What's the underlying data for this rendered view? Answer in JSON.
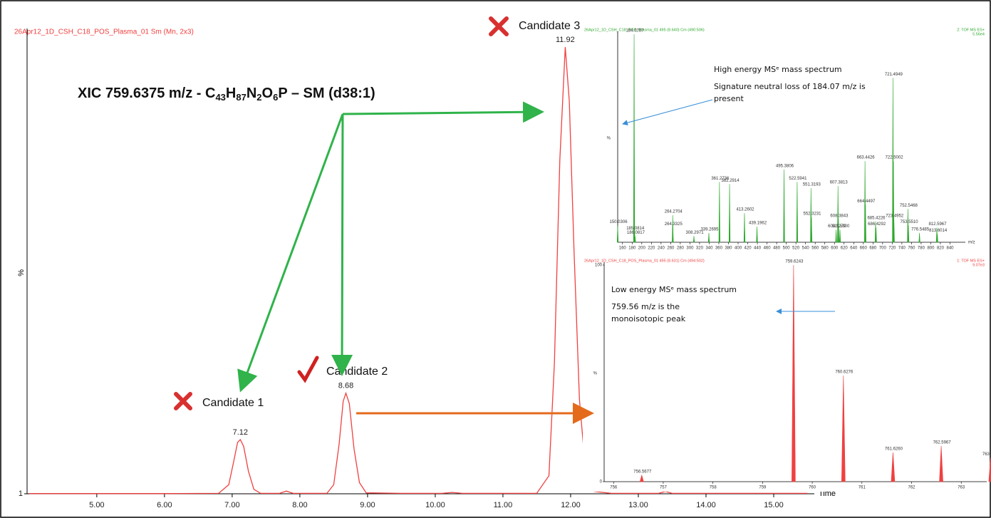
{
  "chart_data": [
    {
      "type": "line",
      "title": "26Apr12_1D_CSH_C18_POS_Plasma_01 Sm (Mn, 2x3)",
      "color": "#f04040",
      "y_label": "%",
      "x_label": "Time",
      "xlim": [
        3.97,
        15.6
      ],
      "ylim": [
        1,
        100
      ],
      "xticks": [
        {
          "value": 5,
          "label": "5.00"
        },
        {
          "value": 6,
          "label": "6.00"
        },
        {
          "value": 7,
          "label": "7.00"
        },
        {
          "value": 8,
          "label": "8.00"
        },
        {
          "value": 9,
          "label": "9.00"
        },
        {
          "value": 10,
          "label": "10.00"
        },
        {
          "value": 11,
          "label": "11.00"
        },
        {
          "value": 12,
          "label": "12.00"
        },
        {
          "value": 13,
          "label": "13.00"
        },
        {
          "value": 14,
          "label": "14.00"
        },
        {
          "value": 15,
          "label": "15.00"
        }
      ],
      "yticks": [
        1
      ],
      "x": [
        4.0,
        5.0,
        6.0,
        6.8,
        6.95,
        7.02,
        7.08,
        7.12,
        7.17,
        7.24,
        7.32,
        7.42,
        7.7,
        7.8,
        7.9,
        8.4,
        8.5,
        8.58,
        8.64,
        8.68,
        8.73,
        8.8,
        8.88,
        8.98,
        9.5,
        10.1,
        10.25,
        10.4,
        11.5,
        11.68,
        11.76,
        11.84,
        11.92,
        11.98,
        12.05,
        12.13,
        12.22,
        12.35,
        12.6,
        13.3,
        13.4,
        13.5,
        15.5
      ],
      "values": [
        1.05,
        1.05,
        1.05,
        1.1,
        3,
        8,
        12.4,
        13,
        11.5,
        6,
        2,
        1.1,
        1.1,
        1.6,
        1.1,
        1.1,
        3,
        12,
        21.5,
        23.3,
        21,
        11,
        3.5,
        1.2,
        1.1,
        1.1,
        1.3,
        1.1,
        1.1,
        5,
        30,
        75,
        100,
        88,
        55,
        22,
        6,
        1.5,
        1.1,
        1.1,
        1.5,
        1.1,
        1.1
      ],
      "peak_labels": [
        7.12,
        8.68,
        11.92
      ],
      "candidates": [
        "Candidate 1",
        "Candidate 2",
        "Candidate 3"
      ],
      "xic_label": [
        "XIC 759.6375 m/z - C",
        "43",
        "H",
        "87",
        "N",
        "2",
        "O",
        "6",
        "P – SM (d38:1)"
      ]
    },
    {
      "type": "spectrum",
      "title": "26Apr12_1D_CSH_C18_POS_Plasma_01 495 (8.640) Cm (490:506)",
      "color": "#2ea82e",
      "header": [
        "2: TOF MS ES+",
        "5.56e4"
      ],
      "y_label": "%",
      "x_label": "m/z",
      "xlim": [
        150,
        857
      ],
      "ylim": [
        0,
        100
      ],
      "xticks": [
        160,
        180,
        200,
        220,
        240,
        260,
        280,
        300,
        320,
        340,
        360,
        380,
        400,
        420,
        440,
        460,
        480,
        500,
        520,
        540,
        560,
        580,
        600,
        620,
        640,
        660,
        680,
        700,
        720,
        740,
        760,
        780,
        800,
        820,
        840
      ],
      "x": [
        150.0306,
        184.0787,
        185.0814,
        186.0817,
        264.2704,
        264.3325,
        308.2971,
        339.2695,
        361.2736,
        382.2914,
        413.2602,
        439.1962,
        495.3806,
        522.5941,
        551.3193,
        552.3231,
        603.5279,
        607.3813,
        608.3843,
        611.53,
        663.4426,
        664.4497,
        685.4226,
        686.4292,
        721.4949,
        722.5002,
        723.4952,
        752.5468,
        753.551,
        776.5485,
        812.5967,
        813.6014
      ],
      "values": [
        8,
        100,
        5,
        3,
        13,
        7,
        3,
        4.5,
        29,
        28,
        14,
        7.5,
        35,
        29,
        26,
        12,
        6,
        27,
        11,
        6,
        39,
        18,
        10,
        7,
        79,
        39,
        11,
        16,
        8,
        4.5,
        7,
        4
      ],
      "x_labels": [
        "150.0306",
        "184.0787",
        "185.0814",
        "186.0817",
        "264.2704",
        "264.3325",
        "308.2971",
        "339.2695",
        "361.2736",
        "382.2914",
        "413.2602",
        "439.1962",
        "495.3806",
        "522.5941",
        "551.3193",
        "552.3231",
        "603.5279",
        "607.3813",
        "608.3843",
        "611.5300",
        "663.4426",
        "664.4497",
        "685.4226",
        "686.4292",
        "721.4949",
        "722.5002",
        "723.4952",
        "752.5468",
        "753.5510",
        "776.5485",
        "812.5967",
        "813.6014"
      ],
      "annotation_title": "High energy MSᵉ mass spectrum",
      "annotation": [
        "Signature neutral loss of 184.07 m/z is",
        "present"
      ]
    },
    {
      "type": "spectrum",
      "title": "26Apr12_1D_CSH_C18_POS_Plasma_01 495 (8.631) Cm (494:502)",
      "color": "#f04040",
      "header": [
        "1: TOF MS ES+",
        "9.07e3"
      ],
      "y_label": "%",
      "x_label": "m/z",
      "xlim": [
        755.81,
        763.37
      ],
      "ylim": [
        0,
        100
      ],
      "yticks": [
        0,
        100
      ],
      "xticks": [
        756,
        757,
        758,
        759,
        760,
        761,
        762,
        763
      ],
      "x": [
        756.5677,
        759.6243,
        760.6276,
        761.626,
        762.5967,
        763.5907
      ],
      "values": [
        3,
        100,
        49,
        13.5,
        16.5,
        11
      ],
      "x_labels": [
        "756.5677",
        "759.6243",
        "760.6276",
        "761.6260",
        "762.5967",
        "763.5907"
      ],
      "annotation_title": "Low energy MSᵉ mass spectrum",
      "annotation": [
        "759.56 m/z is the",
        "monoisotopic peak"
      ]
    }
  ]
}
